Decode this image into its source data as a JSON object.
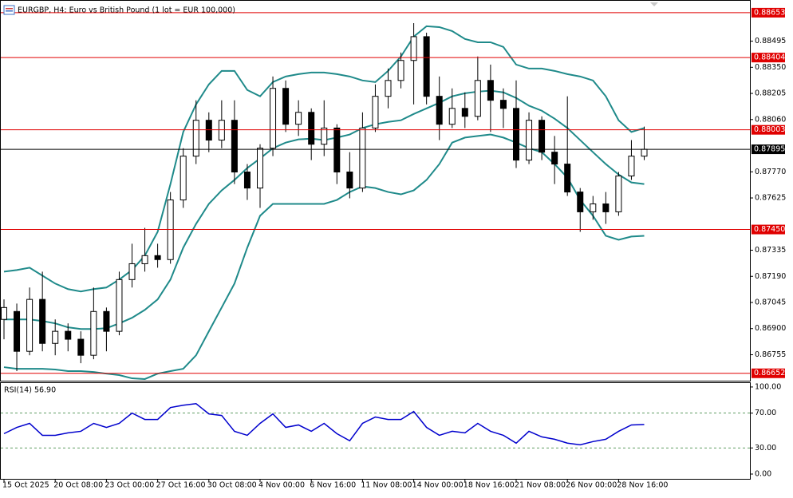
{
  "chart_data": [
    {
      "type": "candlestick",
      "title": "EURGBP, H4:  Euro vs British Pound (1 lot = EUR 100,000)",
      "open": [
        0.86951,
        0.86995,
        0.86774,
        0.87062,
        0.86818,
        0.86885,
        0.86841,
        0.86752,
        0.86995,
        0.86885,
        0.87172,
        0.8726,
        0.87305,
        0.87283,
        0.87614,
        0.87857,
        0.88056,
        0.87946,
        0.88056,
        0.87769,
        0.8768,
        0.87901,
        0.88233,
        0.88034,
        0.881,
        0.87923,
        0.88013,
        0.87769,
        0.8768,
        0.88013,
        0.88189,
        0.88277,
        0.88388,
        0.8852,
        0.88189,
        0.88034,
        0.88122,
        0.88078,
        0.88277,
        0.88167,
        0.88122,
        0.87835,
        0.88056,
        0.87879,
        0.87813,
        0.87658,
        0.87548,
        0.87592,
        0.87548,
        0.87747,
        0.87857
      ],
      "high": [
        0.87062,
        0.87039,
        0.87128,
        0.87216,
        0.86951,
        0.86929,
        0.86885,
        0.87128,
        0.87017,
        0.87216,
        0.87371,
        0.87459,
        0.87371,
        0.87658,
        0.87901,
        0.88167,
        0.881,
        0.88167,
        0.88167,
        0.87813,
        0.87923,
        0.88299,
        0.88277,
        0.88167,
        0.88122,
        0.88167,
        0.88034,
        0.87879,
        0.881,
        0.88255,
        0.88343,
        0.88432,
        0.88595,
        0.88542,
        0.88299,
        0.88233,
        0.88211,
        0.8841,
        0.88365,
        0.88233,
        0.88277,
        0.881,
        0.88078,
        0.87969,
        0.88189,
        0.8768,
        0.87636,
        0.87658,
        0.87769,
        0.87946,
        0.88021
      ],
      "low": [
        0.86841,
        0.86664,
        0.86752,
        0.86774,
        0.86752,
        0.86774,
        0.86708,
        0.8673,
        0.86774,
        0.86863,
        0.87128,
        0.87216,
        0.87238,
        0.8726,
        0.8757,
        0.87813,
        0.87879,
        0.87901,
        0.87702,
        0.87614,
        0.8757,
        0.87857,
        0.87991,
        0.87969,
        0.87835,
        0.87857,
        0.87702,
        0.87623,
        0.87658,
        0.87991,
        0.88122,
        0.88233,
        0.88144,
        0.88144,
        0.87946,
        0.88013,
        0.88013,
        0.88056,
        0.87991,
        0.88013,
        0.87791,
        0.87813,
        0.87835,
        0.87702,
        0.87636,
        0.87437,
        0.87504,
        0.87481,
        0.87526,
        0.87725,
        0.87835
      ],
      "close": [
        0.87017,
        0.86774,
        0.87062,
        0.86818,
        0.86885,
        0.86841,
        0.86752,
        0.86995,
        0.86885,
        0.87172,
        0.8726,
        0.87305,
        0.87283,
        0.87614,
        0.87857,
        0.88056,
        0.87946,
        0.88056,
        0.87769,
        0.8768,
        0.87901,
        0.88233,
        0.88034,
        0.881,
        0.87923,
        0.88013,
        0.87769,
        0.8768,
        0.88013,
        0.88189,
        0.88277,
        0.88388,
        0.8852,
        0.88189,
        0.88034,
        0.88122,
        0.88078,
        0.88277,
        0.88167,
        0.88122,
        0.87835,
        0.88056,
        0.87879,
        0.87813,
        0.87658,
        0.87548,
        0.87592,
        0.87548,
        0.87747,
        0.87857,
        0.87895
      ],
      "bull_color": "#ffffff",
      "bear_color": "#000000",
      "wick_color": "#000000",
      "bands": [
        {
          "color": "#1f8a8a",
          "values": [
            0.87216,
            0.87225,
            0.87238,
            0.87194,
            0.8715,
            0.87119,
            0.87106,
            0.87119,
            0.87128,
            0.87172,
            0.87225,
            0.87305,
            0.87437,
            0.87702,
            0.87991,
            0.88144,
            0.88255,
            0.8833,
            0.8833,
            0.88224,
            0.88189,
            0.88268,
            0.88299,
            0.88312,
            0.88321,
            0.88321,
            0.88312,
            0.88299,
            0.88277,
            0.88268,
            0.8833,
            0.8841,
            0.8852,
            0.88578,
            0.88573,
            0.88551,
            0.88507,
            0.88489,
            0.88489,
            0.88463,
            0.88365,
            0.88343,
            0.88343,
            0.8833,
            0.88312,
            0.88299,
            0.88277,
            0.88189,
            0.88056,
            0.87991,
            0.88013
          ]
        },
        {
          "color": "#1f8a8a",
          "values": [
            0.86951,
            0.86951,
            0.86951,
            0.86942,
            0.86929,
            0.86907,
            0.86898,
            0.86898,
            0.86902,
            0.86929,
            0.8696,
            0.87004,
            0.87062,
            0.87172,
            0.87349,
            0.87481,
            0.87592,
            0.87667,
            0.87725,
            0.87791,
            0.87844,
            0.87901,
            0.87932,
            0.8795,
            0.87954,
            0.87946,
            0.8796,
            0.87977,
            0.88013,
            0.88034,
            0.88047,
            0.88056,
            0.88091,
            0.88122,
            0.88153,
            0.88189,
            0.88206,
            0.88215,
            0.8822,
            0.88211,
            0.8818,
            0.88137,
            0.88109,
            0.88065,
            0.88013,
            0.87946,
            0.87879,
            0.87813,
            0.87755,
            0.87711,
            0.87702
          ]
        },
        {
          "color": "#1f8a8a",
          "values": [
            0.86686,
            0.86677,
            0.86677,
            0.86677,
            0.86673,
            0.86664,
            0.86664,
            0.86659,
            0.8665,
            0.86642,
            0.86624,
            0.8662,
            0.8665,
            0.86664,
            0.86677,
            0.86752,
            0.86885,
            0.87017,
            0.8715,
            0.87349,
            0.87526,
            0.87592,
            0.87592,
            0.87592,
            0.87592,
            0.87592,
            0.87614,
            0.87658,
            0.87689,
            0.8768,
            0.87658,
            0.87645,
            0.87667,
            0.87725,
            0.87813,
            0.87932,
            0.8796,
            0.87969,
            0.87977,
            0.8796,
            0.87932,
            0.87901,
            0.87879,
            0.87813,
            0.87738,
            0.87614,
            0.87526,
            0.87415,
            0.87393,
            0.87411,
            0.87415
          ]
        }
      ],
      "levels": {
        "color": "#e00000",
        "values": [
          0.88653,
          0.88404,
          0.88003,
          {
            "value": 0.8745,
            "label": "0.87450"
          },
          0.86652
        ]
      },
      "current_price": {
        "color": "#000000",
        "value": 0.87895
      },
      "ylim": [
        0.86611,
        0.88719
      ],
      "yticks": [
        {
          "value": 0.88495,
          "label": "0.88495"
        },
        {
          "value": 0.8835,
          "label": "0.88350"
        },
        {
          "value": 0.88205,
          "label": "0.88205"
        },
        {
          "value": 0.8806,
          "label": "0.88060"
        },
        {
          "value": 0.8777,
          "label": "0.87770"
        },
        {
          "value": 0.87625,
          "label": "0.87625"
        },
        {
          "value": 0.87335,
          "label": "0.87335"
        },
        {
          "value": 0.8719,
          "label": "0.87190"
        },
        {
          "value": 0.87045,
          "label": "0.87045"
        },
        {
          "value": 0.869,
          "label": "0.86900"
        },
        {
          "value": 0.86755,
          "label": "0.86755"
        }
      ]
    },
    {
      "type": "line",
      "title": "RSI(14) 56.90",
      "color": "#0000cd",
      "categories": [
        "15 Oct 2025",
        null,
        null,
        null,
        "20 Oct 08:00",
        null,
        null,
        null,
        "23 Oct 00:00",
        null,
        null,
        null,
        "27 Oct 16:00",
        null,
        null,
        null,
        "30 Oct 08:00",
        null,
        null,
        null,
        "4 Nov 00:00",
        null,
        null,
        null,
        "6 Nov 16:00",
        null,
        null,
        null,
        "11 Nov 08:00",
        null,
        null,
        null,
        "14 Nov 00:00",
        null,
        null,
        null,
        "18 Nov 16:00",
        null,
        null,
        null,
        "21 Nov 08:00",
        null,
        null,
        null,
        "26 Nov 00:00",
        null,
        null,
        null,
        "28 Nov 16:00",
        null,
        null
      ],
      "values": [
        46.4,
        53.6,
        58.2,
        44.5,
        44.5,
        47.3,
        49.1,
        58.2,
        53.6,
        58.2,
        70,
        62.7,
        62.7,
        76.4,
        79.1,
        80.9,
        69.1,
        67.3,
        49.1,
        44.5,
        58.2,
        69.1,
        53.6,
        56.4,
        49.1,
        58.2,
        46.4,
        38.2,
        58.2,
        65.5,
        62.7,
        62.7,
        71.8,
        53.6,
        44.5,
        49.1,
        47.3,
        58.2,
        49.1,
        44.5,
        35.5,
        49.1,
        42.7,
        40,
        35.5,
        33.6,
        37.3,
        40,
        49.1,
        56.4,
        56.9
      ],
      "ylim": [
        -5.5,
        104.5
      ],
      "yticks": [
        {
          "value": 100,
          "label": "100.00"
        },
        {
          "value": 70,
          "label": "70.00"
        },
        {
          "value": 30,
          "label": "30.00"
        },
        {
          "value": 0,
          "label": "0.00"
        }
      ],
      "grid": "dashed"
    }
  ]
}
